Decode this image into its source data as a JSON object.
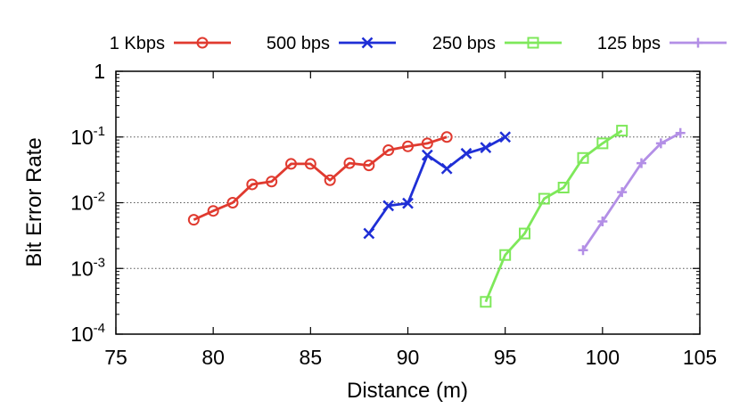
{
  "chart_data": {
    "type": "line",
    "xlabel": "Distance (m)",
    "ylabel": "Bit Error Rate",
    "xlim": [
      75,
      105
    ],
    "ylim": [
      0.0001,
      1
    ],
    "yscale": "log",
    "x_ticks": [
      75,
      80,
      85,
      90,
      95,
      100,
      105
    ],
    "y_ticks": [
      {
        "value": 1,
        "base": "1",
        "exp": ""
      },
      {
        "value": 0.1,
        "base": "10",
        "exp": "-1"
      },
      {
        "value": 0.01,
        "base": "10",
        "exp": "-2"
      },
      {
        "value": 0.001,
        "base": "10",
        "exp": "-3"
      },
      {
        "value": 0.0001,
        "base": "10",
        "exp": "-4"
      }
    ],
    "grid": "horizontal dotted at major y ticks",
    "legend_position": "top",
    "series": [
      {
        "name": "1 Kbps",
        "color": "#e03a2f",
        "marker": "circle",
        "x": [
          79,
          80,
          81,
          82,
          83,
          84,
          85,
          86,
          87,
          88,
          89,
          90,
          91,
          92
        ],
        "y": [
          0.0055,
          0.0075,
          0.01,
          0.019,
          0.021,
          0.039,
          0.039,
          0.022,
          0.04,
          0.037,
          0.063,
          0.072,
          0.08,
          0.1
        ]
      },
      {
        "name": "500 bps",
        "color": "#1f2fd6",
        "marker": "x",
        "x": [
          88,
          89,
          90,
          91,
          92,
          93,
          94,
          95
        ],
        "y": [
          0.0034,
          0.009,
          0.0098,
          0.053,
          0.033,
          0.056,
          0.069,
          0.1
        ]
      },
      {
        "name": "250 bps",
        "color": "#7ee85a",
        "marker": "square",
        "x": [
          94,
          95,
          96,
          97,
          98,
          99,
          100,
          101
        ],
        "y": [
          0.00031,
          0.0016,
          0.0034,
          0.0115,
          0.017,
          0.048,
          0.08,
          0.125
        ]
      },
      {
        "name": "125 bps",
        "color": "#b38fe6",
        "marker": "plus",
        "x": [
          99,
          100,
          101,
          102,
          103,
          104
        ],
        "y": [
          0.0019,
          0.0052,
          0.0145,
          0.04,
          0.08,
          0.115
        ]
      }
    ]
  }
}
